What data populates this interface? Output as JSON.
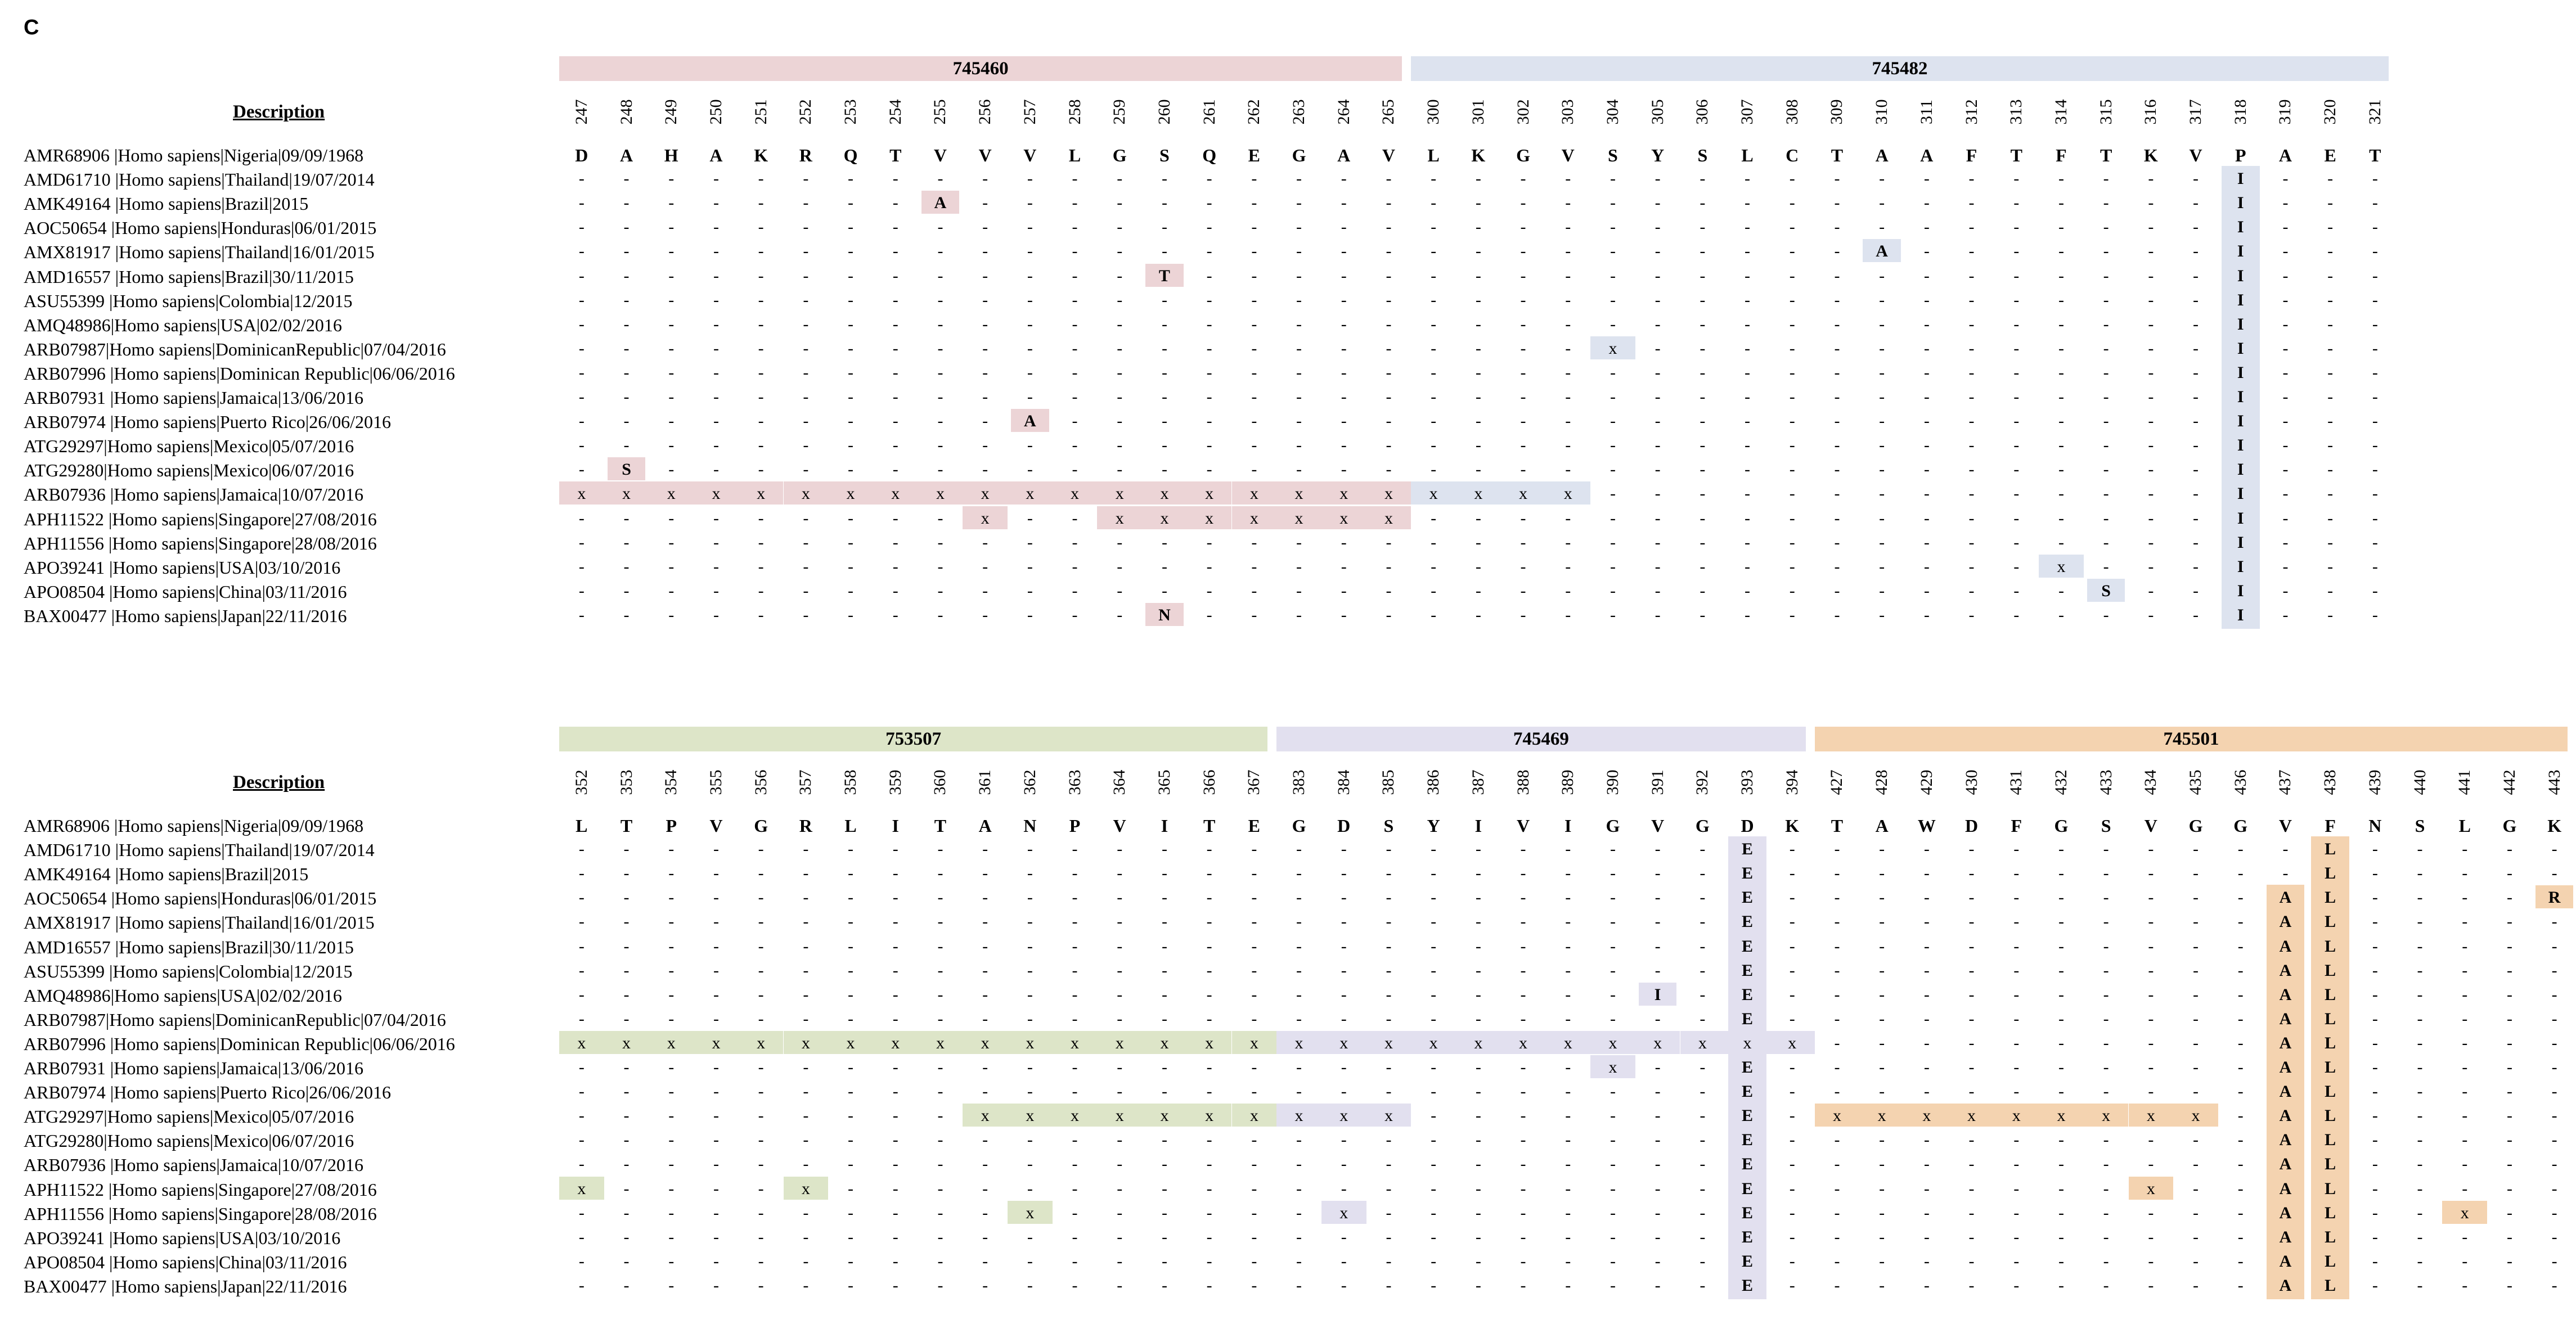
{
  "panel_label": "C",
  "description_header": "Description",
  "colors": {
    "pink": "#ecd4d6",
    "blue": "#dde3ef",
    "green": "#dde5c8",
    "lavender": "#e2e0ef",
    "orange": "#f4d3b0"
  },
  "panels": [
    {
      "segments": [
        {
          "label": "745460",
          "color": "pink",
          "positions": [
            "247",
            "248",
            "249",
            "250",
            "251",
            "252",
            "253",
            "254",
            "255",
            "256",
            "257",
            "258",
            "259",
            "260",
            "261",
            "262",
            "263",
            "264",
            "265"
          ]
        },
        {
          "label": "745482",
          "color": "blue",
          "positions": [
            "300",
            "301",
            "302",
            "303",
            "304",
            "305",
            "306",
            "307",
            "308",
            "309",
            "310",
            "311",
            "312",
            "313",
            "314",
            "315",
            "316",
            "317",
            "318",
            "319",
            "320",
            "321"
          ]
        }
      ],
      "reference": {
        "label": "AMR68906 |Homo sapiens|Nigeria|09/09/1968",
        "residues": [
          "D",
          "A",
          "H",
          "A",
          "K",
          "R",
          "Q",
          "T",
          "V",
          "V",
          "V",
          "L",
          "G",
          "S",
          "Q",
          "E",
          "G",
          "A",
          "V",
          "L",
          "K",
          "G",
          "V",
          "S",
          "Y",
          "S",
          "L",
          "C",
          "T",
          "A",
          "A",
          "F",
          "T",
          "F",
          "T",
          "K",
          "V",
          "P",
          "A",
          "E",
          "T"
        ]
      },
      "rows": [
        {
          "label": "AMD61710 |Homo sapiens|Thailand|19/07/2014",
          "muts": {
            "37": "I"
          }
        },
        {
          "label": "AMK49164 |Homo sapiens|Brazil|2015",
          "muts": {
            "8": "A",
            "37": "I"
          }
        },
        {
          "label": "AOC50654 |Homo sapiens|Honduras|06/01/2015",
          "muts": {
            "37": "I"
          }
        },
        {
          "label": "AMX81917 |Homo sapiens|Thailand|16/01/2015",
          "muts": {
            "29": "A",
            "37": "I"
          }
        },
        {
          "label": "AMD16557 |Homo sapiens|Brazil|30/11/2015",
          "muts": {
            "13": "T",
            "37": "I"
          }
        },
        {
          "label": "ASU55399 |Homo sapiens|Colombia|12/2015",
          "muts": {
            "37": "I"
          }
        },
        {
          "label": "AMQ48986|Homo sapiens|USA|02/02/2016",
          "muts": {
            "37": "I"
          }
        },
        {
          "label": "ARB07987|Homo sapiens|DominicanRepublic|07/04/2016",
          "muts": {
            "23": "x",
            "37": "I"
          }
        },
        {
          "label": "ARB07996 |Homo sapiens|Dominican Republic|06/06/2016",
          "muts": {
            "37": "I"
          }
        },
        {
          "label": "ARB07931 |Homo sapiens|Jamaica|13/06/2016",
          "muts": {
            "37": "I"
          }
        },
        {
          "label": "ARB07974 |Homo sapiens|Puerto Rico|26/06/2016",
          "muts": {
            "10": "A",
            "37": "I"
          }
        },
        {
          "label": "ATG29297|Homo sapiens|Mexico|05/07/2016",
          "muts": {
            "37": "I"
          }
        },
        {
          "label": "ATG29280|Homo sapiens|Mexico|06/07/2016",
          "muts": {
            "1": "S",
            "37": "I"
          }
        },
        {
          "label": "ARB07936 |Homo sapiens|Jamaica|10/07/2016",
          "muts": {
            "0": "x",
            "1": "x",
            "2": "x",
            "3": "x",
            "4": "x",
            "5": "x",
            "6": "x",
            "7": "x",
            "8": "x",
            "9": "x",
            "10": "x",
            "11": "x",
            "12": "x",
            "13": "x",
            "14": "x",
            "15": "x",
            "16": "x",
            "17": "x",
            "18": "x",
            "19": "x",
            "20": "x",
            "21": "x",
            "22": "x",
            "37": "I"
          }
        },
        {
          "label": "APH11522 |Homo sapiens|Singapore|27/08/2016",
          "muts": {
            "9": "x",
            "12": "x",
            "13": "x",
            "14": "x",
            "15": "x",
            "16": "x",
            "17": "x",
            "18": "x",
            "37": "I"
          }
        },
        {
          "label": "APH11556 |Homo sapiens|Singapore|28/08/2016",
          "muts": {
            "37": "I"
          }
        },
        {
          "label": "APO39241 |Homo sapiens|USA|03/10/2016",
          "muts": {
            "33": "x",
            "37": "I"
          }
        },
        {
          "label": "APO08504 |Homo sapiens|China|03/11/2016",
          "muts": {
            "34": "S",
            "37": "I"
          }
        },
        {
          "label": "BAX00477 |Homo sapiens|Japan|22/11/2016",
          "muts": {
            "13": "N",
            "37": "I"
          }
        }
      ]
    },
    {
      "segments": [
        {
          "label": "753507",
          "color": "green",
          "positions": [
            "352",
            "353",
            "354",
            "355",
            "356",
            "357",
            "358",
            "359",
            "360",
            "361",
            "362",
            "363",
            "364",
            "365",
            "366",
            "367"
          ]
        },
        {
          "label": "745469",
          "color": "lavender",
          "positions": [
            "383",
            "384",
            "385",
            "386",
            "387",
            "388",
            "389",
            "390",
            "391",
            "392",
            "393",
            "394"
          ]
        },
        {
          "label": "745501",
          "color": "orange",
          "positions": [
            "427",
            "428",
            "429",
            "430",
            "431",
            "432",
            "433",
            "434",
            "435",
            "436",
            "437",
            "438",
            "439",
            "440",
            "441",
            "442",
            "443"
          ]
        }
      ],
      "reference": {
        "label": "AMR68906 |Homo sapiens|Nigeria|09/09/1968",
        "residues": [
          "L",
          "T",
          "P",
          "V",
          "G",
          "R",
          "L",
          "I",
          "T",
          "A",
          "N",
          "P",
          "V",
          "I",
          "T",
          "E",
          "G",
          "D",
          "S",
          "Y",
          "I",
          "V",
          "I",
          "G",
          "V",
          "G",
          "D",
          "K",
          "T",
          "A",
          "W",
          "D",
          "F",
          "G",
          "S",
          "V",
          "G",
          "G",
          "V",
          "F",
          "N",
          "S",
          "L",
          "G",
          "K"
        ]
      },
      "rows": [
        {
          "label": "AMD61710 |Homo sapiens|Thailand|19/07/2014",
          "muts": {
            "26": "E",
            "39": "L"
          }
        },
        {
          "label": "AMK49164 |Homo sapiens|Brazil|2015",
          "muts": {
            "26": "E",
            "39": "L"
          }
        },
        {
          "label": "AOC50654 |Homo sapiens|Honduras|06/01/2015",
          "muts": {
            "26": "E",
            "38": "A",
            "39": "L",
            "44": "R"
          }
        },
        {
          "label": "AMX81917 |Homo sapiens|Thailand|16/01/2015",
          "muts": {
            "26": "E",
            "38": "A",
            "39": "L"
          }
        },
        {
          "label": "AMD16557 |Homo sapiens|Brazil|30/11/2015",
          "muts": {
            "26": "E",
            "38": "A",
            "39": "L"
          }
        },
        {
          "label": "ASU55399 |Homo sapiens|Colombia|12/2015",
          "muts": {
            "26": "E",
            "38": "A",
            "39": "L"
          }
        },
        {
          "label": "AMQ48986|Homo sapiens|USA|02/02/2016",
          "muts": {
            "24": "I",
            "26": "E",
            "38": "A",
            "39": "L"
          }
        },
        {
          "label": "ARB07987|Homo sapiens|DominicanRepublic|07/04/2016",
          "muts": {
            "26": "E",
            "38": "A",
            "39": "L"
          }
        },
        {
          "label": "ARB07996 |Homo sapiens|Dominican Republic|06/06/2016",
          "muts": {
            "0": "x",
            "1": "x",
            "2": "x",
            "3": "x",
            "4": "x",
            "5": "x",
            "6": "x",
            "7": "x",
            "8": "x",
            "9": "x",
            "10": "x",
            "11": "x",
            "12": "x",
            "13": "x",
            "14": "x",
            "15": "x",
            "16": "x",
            "17": "x",
            "18": "x",
            "19": "x",
            "20": "x",
            "21": "x",
            "22": "x",
            "23": "x",
            "24": "x",
            "25": "x",
            "26": "x",
            "27": "x",
            "38": "A",
            "39": "L"
          }
        },
        {
          "label": "ARB07931 |Homo sapiens|Jamaica|13/06/2016",
          "muts": {
            "23": "x",
            "26": "E",
            "38": "A",
            "39": "L"
          }
        },
        {
          "label": "ARB07974 |Homo sapiens|Puerto Rico|26/06/2016",
          "muts": {
            "26": "E",
            "38": "A",
            "39": "L"
          }
        },
        {
          "label": "ATG29297|Homo sapiens|Mexico|05/07/2016",
          "muts": {
            "9": "x",
            "10": "x",
            "11": "x",
            "12": "x",
            "13": "x",
            "14": "x",
            "15": "x",
            "16": "x",
            "17": "x",
            "18": "x",
            "26": "E",
            "28": "x",
            "29": "x",
            "30": "x",
            "31": "x",
            "32": "x",
            "33": "x",
            "34": "x",
            "35": "x",
            "36": "x",
            "38": "A",
            "39": "L"
          }
        },
        {
          "label": "ATG29280|Homo sapiens|Mexico|06/07/2016",
          "muts": {
            "26": "E",
            "38": "A",
            "39": "L"
          }
        },
        {
          "label": "ARB07936 |Homo sapiens|Jamaica|10/07/2016",
          "muts": {
            "26": "E",
            "38": "A",
            "39": "L"
          }
        },
        {
          "label": "APH11522 |Homo sapiens|Singapore|27/08/2016",
          "muts": {
            "0": "x",
            "5": "x",
            "26": "E",
            "35": "x",
            "38": "A",
            "39": "L"
          }
        },
        {
          "label": "APH11556 |Homo sapiens|Singapore|28/08/2016",
          "muts": {
            "10": "x",
            "17": "x",
            "26": "E",
            "38": "A",
            "39": "L",
            "42": "x"
          }
        },
        {
          "label": "APO39241 |Homo sapiens|USA|03/10/2016",
          "muts": {
            "26": "E",
            "38": "A",
            "39": "L"
          }
        },
        {
          "label": "APO08504 |Homo sapiens|China|03/11/2016",
          "muts": {
            "26": "E",
            "38": "A",
            "39": "L"
          }
        },
        {
          "label": "BAX00477 |Homo sapiens|Japan|22/11/2016",
          "muts": {
            "26": "E",
            "38": "A",
            "39": "L"
          }
        }
      ]
    }
  ]
}
